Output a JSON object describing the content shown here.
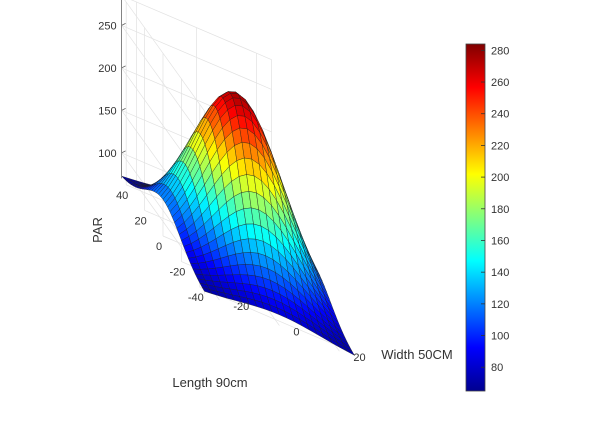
{
  "chart_data": {
    "type": "surface",
    "title": "",
    "xlabel": "Length 90cm",
    "ylabel": "Width 50CM",
    "zlabel": "PAR",
    "x_ticks": [
      40,
      20,
      0,
      -20,
      -40
    ],
    "y_ticks": [
      -20,
      0,
      20
    ],
    "z_ticks": [
      100,
      150,
      200,
      250
    ],
    "xlim": [
      -45,
      45
    ],
    "ylim": [
      -25,
      25
    ],
    "zlim": [
      70,
      285
    ],
    "surface": {
      "peak_value": 275,
      "edge_min_value": 70,
      "x_range": [
        -45,
        45
      ],
      "y_range": [
        -25,
        25
      ],
      "grid_x": 36,
      "grid_y": 20
    },
    "colorbar": {
      "ticks": [
        80,
        100,
        120,
        140,
        160,
        180,
        200,
        220,
        240,
        260,
        280
      ],
      "range": [
        65,
        284
      ],
      "colormap": "jet"
    },
    "grid": true
  }
}
